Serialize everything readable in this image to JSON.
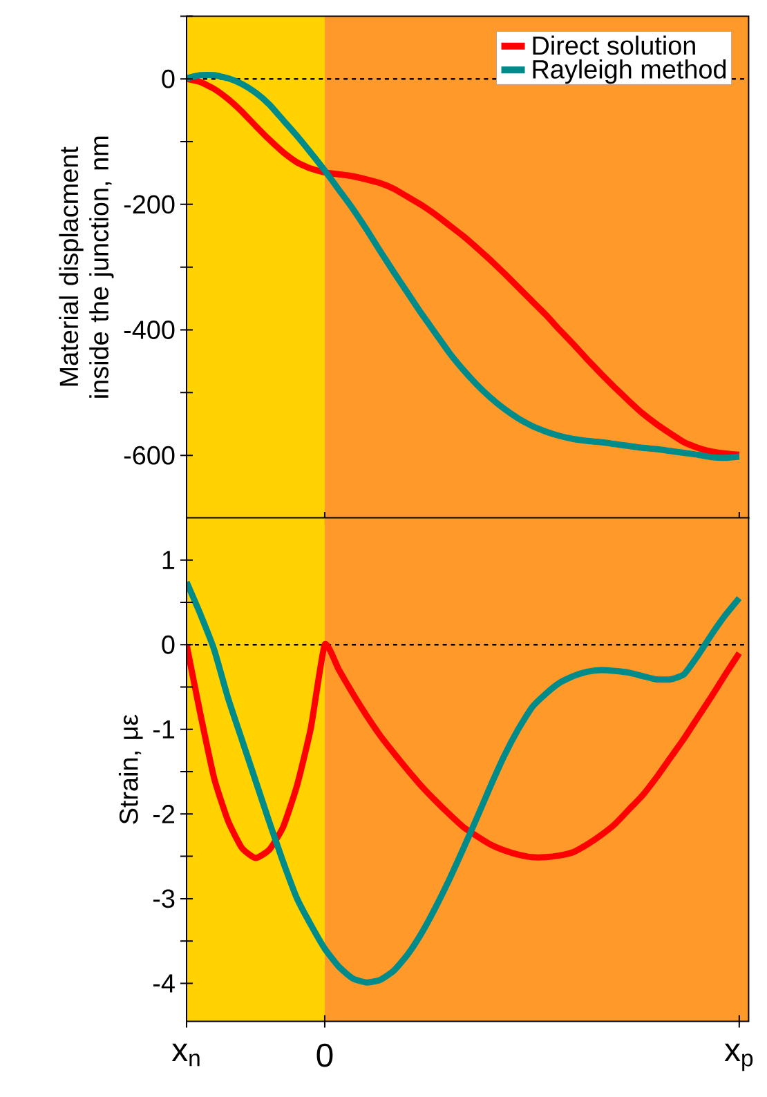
{
  "chart_data": [
    {
      "type": "line",
      "ylabel": "Material displacment inside the junction, nm",
      "legend": "top right",
      "tick_labels": "y",
      "categories": [
        "x$_{n}$",
        null,
        null,
        null,
        null,
        null,
        null,
        null,
        null,
        null,
        "0",
        null,
        null,
        null,
        null,
        null,
        null,
        null,
        null,
        null,
        null,
        null,
        null,
        null,
        null,
        null,
        null,
        null,
        null,
        null,
        null,
        null,
        null,
        null,
        null,
        null,
        null,
        null,
        null,
        null,
        "x$_{p}$"
      ],
      "ylim": [
        -700,
        100
      ],
      "yticks": [
        -600,
        {
          "value": -500,
          "label": null
        },
        -400,
        {
          "value": -300,
          "label": null
        },
        -200,
        {
          "value": -100,
          "label": null
        },
        0,
        {
          "value": 100,
          "label": null
        }
      ],
      "bands": [
        {
          "axis": "x",
          "from": "x$_{n}$",
          "to": "0",
          "color": "#ffd200"
        },
        {
          "axis": "x",
          "from": "0",
          "to": "x$_{p}$",
          "color": "#ff9a2a"
        }
      ],
      "ref_lines": [
        {
          "axis": "y",
          "value": 0,
          "color": "#000000",
          "line_style": "dashed"
        }
      ],
      "series": [
        {
          "name": "Direct solution",
          "color": "#ff0000",
          "values": [
            0,
            -5,
            -16,
            -32,
            -52,
            -75,
            -97,
            -117,
            -133,
            -143,
            -149,
            -152,
            -155,
            -160,
            -166,
            -175,
            -188,
            -201,
            -216,
            -233,
            -250,
            -269,
            -289,
            -310,
            -332,
            -354,
            -376,
            -400,
            -423,
            -447,
            -470,
            -492,
            -513,
            -533,
            -550,
            -565,
            -579,
            -588,
            -594,
            -597,
            -599
          ]
        },
        {
          "name": "Rayleigh method",
          "color": "#008b8b",
          "values": [
            1,
            6,
            6,
            1,
            -8,
            -22,
            -41,
            -66,
            -91,
            -118,
            -146,
            -176,
            -206,
            -239,
            -274,
            -308,
            -341,
            -374,
            -405,
            -436,
            -463,
            -487,
            -508,
            -526,
            -541,
            -553,
            -562,
            -569,
            -574,
            -577,
            -579,
            -582,
            -585,
            -588,
            -590,
            -593,
            -596,
            -599,
            -603,
            -604,
            -602
          ]
        }
      ]
    },
    {
      "type": "line",
      "ylabel": "Strain, με",
      "categories": [
        "x$_{n}$",
        null,
        null,
        null,
        null,
        null,
        null,
        null,
        null,
        null,
        "0",
        null,
        null,
        null,
        null,
        null,
        null,
        null,
        null,
        null,
        null,
        null,
        null,
        null,
        null,
        null,
        null,
        null,
        null,
        null,
        null,
        null,
        null,
        null,
        null,
        null,
        null,
        null,
        null,
        null,
        "x$_{p}$"
      ],
      "ylim": [
        -4.45,
        1.5
      ],
      "yticks": [
        -4,
        {
          "value": -3.5,
          "label": null
        },
        -3,
        {
          "value": -2.5,
          "label": null
        },
        -2,
        {
          "value": -1.5,
          "label": null
        },
        -1,
        {
          "value": -0.5,
          "label": null
        },
        0,
        {
          "value": 0.5,
          "label": null
        },
        1
      ],
      "bands": [
        {
          "axis": "x",
          "from": "x$_{n}$",
          "to": "0",
          "color": "#ffd200"
        },
        {
          "axis": "x",
          "from": "0",
          "to": "x$_{p}$",
          "color": "#ff9a2a"
        }
      ],
      "ref_lines": [
        {
          "axis": "y",
          "value": 0,
          "color": "#000000",
          "line_style": "dashed"
        }
      ],
      "series": [
        {
          "color": "#ff0000",
          "values": [
            0,
            -0.82,
            -1.58,
            -2.08,
            -2.4,
            -2.52,
            -2.42,
            -2.15,
            -1.66,
            -0.98,
            0,
            -0.29,
            -0.57,
            -0.83,
            -1.07,
            -1.28,
            -1.48,
            -1.67,
            -1.84,
            -2.0,
            -2.15,
            -2.26,
            -2.36,
            -2.43,
            -2.48,
            -2.51,
            -2.51,
            -2.49,
            -2.45,
            -2.36,
            -2.25,
            -2.12,
            -1.95,
            -1.78,
            -1.57,
            -1.34,
            -1.11,
            -0.86,
            -0.61,
            -0.35,
            -0.1
          ]
        },
        {
          "color": "#008b8b",
          "values": [
            0.74,
            0.36,
            -0.06,
            -0.63,
            -1.12,
            -1.61,
            -2.1,
            -2.57,
            -3.0,
            -3.31,
            -3.59,
            -3.8,
            -3.94,
            -3.99,
            -3.96,
            -3.85,
            -3.66,
            -3.41,
            -3.11,
            -2.78,
            -2.42,
            -2.05,
            -1.67,
            -1.31,
            -1.0,
            -0.74,
            -0.58,
            -0.45,
            -0.37,
            -0.32,
            -0.3,
            -0.31,
            -0.33,
            -0.37,
            -0.41,
            -0.41,
            -0.35,
            -0.13,
            0.12,
            0.35,
            0.55
          ]
        }
      ]
    }
  ]
}
